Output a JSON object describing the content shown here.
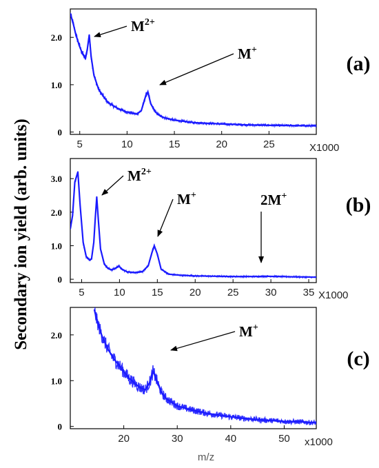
{
  "figure": {
    "ylabel": "Secondary ion yield (arb. units)",
    "xlabel": "m/z",
    "series_color": "#1a1aff",
    "annotation_color": "#000000"
  },
  "chart_data": [
    {
      "type": "line",
      "panel_label": "(a)",
      "multiplier_label": "X1000",
      "xlim": [
        4,
        30
      ],
      "ylim": [
        -0.05,
        2.6
      ],
      "xticks": [
        5,
        10,
        15,
        20,
        25
      ],
      "xtick_labels": [
        "5",
        "10",
        "15",
        "20",
        "25"
      ],
      "yticks": [
        0,
        1.0,
        2.0
      ],
      "ytick_labels": [
        "0",
        "1.0",
        "2.0"
      ],
      "series": [
        {
          "x": [
            4.0,
            4.3,
            4.6,
            5.0,
            5.3,
            5.6,
            5.8,
            6.0,
            6.2,
            6.5,
            7.0,
            7.5,
            8.0,
            9.0,
            10.0,
            11.0,
            11.5,
            12.0,
            12.2,
            12.5,
            13.0,
            13.5,
            14.0,
            15.0,
            17.0,
            20.0,
            23.0,
            26.0,
            30.0
          ],
          "y": [
            2.5,
            2.3,
            2.05,
            1.8,
            1.65,
            1.55,
            1.75,
            2.05,
            1.6,
            1.2,
            0.9,
            0.75,
            0.62,
            0.5,
            0.42,
            0.38,
            0.45,
            0.78,
            0.85,
            0.6,
            0.42,
            0.34,
            0.3,
            0.25,
            0.2,
            0.17,
            0.15,
            0.14,
            0.13
          ]
        }
      ],
      "annotations": [
        {
          "text": "M",
          "sup": "2+",
          "x": 6.0,
          "y": 2.05
        },
        {
          "text": "M",
          "sup": "+",
          "x": 12.2,
          "y": 0.85
        }
      ]
    },
    {
      "type": "line",
      "panel_label": "(b)",
      "multiplier_label": "X1000",
      "xlim": [
        3.5,
        36
      ],
      "ylim": [
        -0.1,
        3.6
      ],
      "xticks": [
        5,
        10,
        15,
        20,
        25,
        30,
        35
      ],
      "xtick_labels": [
        "5",
        "10",
        "15",
        "20",
        "25",
        "30",
        "35"
      ],
      "yticks": [
        0,
        1.0,
        2.0,
        3.0
      ],
      "ytick_labels": [
        "0",
        "1.0",
        "2.0",
        "3.0"
      ],
      "series": [
        {
          "x": [
            3.5,
            3.8,
            4.1,
            4.5,
            4.8,
            5.2,
            5.6,
            6.0,
            6.3,
            6.6,
            6.8,
            7.0,
            7.2,
            7.5,
            8.0,
            8.5,
            9.0,
            9.5,
            9.9,
            10.3,
            11.0,
            12.0,
            13.0,
            13.8,
            14.3,
            14.6,
            15.0,
            15.5,
            16.5,
            18.0,
            20.0,
            25.0,
            28.0,
            29.5,
            31.0,
            36.0
          ],
          "y": [
            1.5,
            1.9,
            2.9,
            3.2,
            2.2,
            1.1,
            0.68,
            0.58,
            0.6,
            1.1,
            1.8,
            2.45,
            1.8,
            0.9,
            0.45,
            0.32,
            0.28,
            0.33,
            0.4,
            0.3,
            0.22,
            0.2,
            0.22,
            0.4,
            0.8,
            1.0,
            0.75,
            0.3,
            0.15,
            0.12,
            0.1,
            0.08,
            0.08,
            0.09,
            0.08,
            0.06
          ]
        }
      ],
      "annotations": [
        {
          "text": "M",
          "sup": "2+",
          "x": 7.0,
          "y": 2.45
        },
        {
          "text": "M",
          "sup": "+",
          "x": 14.6,
          "y": 1.0
        },
        {
          "text": "2M",
          "sup": "+",
          "x": 29.3,
          "y": 0.12
        }
      ]
    },
    {
      "type": "line",
      "panel_label": "(c)",
      "multiplier_label": "x1000",
      "xlim": [
        10,
        56
      ],
      "ylim": [
        -0.05,
        2.6
      ],
      "xticks": [
        20,
        30,
        40,
        50
      ],
      "xtick_labels": [
        "20",
        "30",
        "40",
        "50"
      ],
      "yticks": [
        0,
        1.0,
        2.0
      ],
      "ytick_labels": [
        "0",
        "1.0",
        "2.0"
      ],
      "series": [
        {
          "x": [
            14.5,
            15.0,
            16.0,
            17.0,
            18.0,
            19.0,
            20.0,
            21.0,
            22.0,
            23.0,
            24.0,
            24.8,
            25.5,
            26.0,
            27.0,
            28.0,
            30.0,
            32.0,
            35.0,
            38.0,
            42.0,
            46.0,
            50.0,
            53.0,
            56.0
          ],
          "y": [
            2.55,
            2.3,
            1.95,
            1.7,
            1.5,
            1.35,
            1.2,
            1.05,
            0.95,
            0.85,
            0.8,
            0.95,
            1.2,
            1.05,
            0.75,
            0.6,
            0.45,
            0.38,
            0.3,
            0.24,
            0.18,
            0.14,
            0.11,
            0.1,
            0.08
          ]
        }
      ],
      "annotations": [
        {
          "text": "M",
          "sup": "+",
          "x": 25.8,
          "y": 1.25
        }
      ]
    }
  ]
}
